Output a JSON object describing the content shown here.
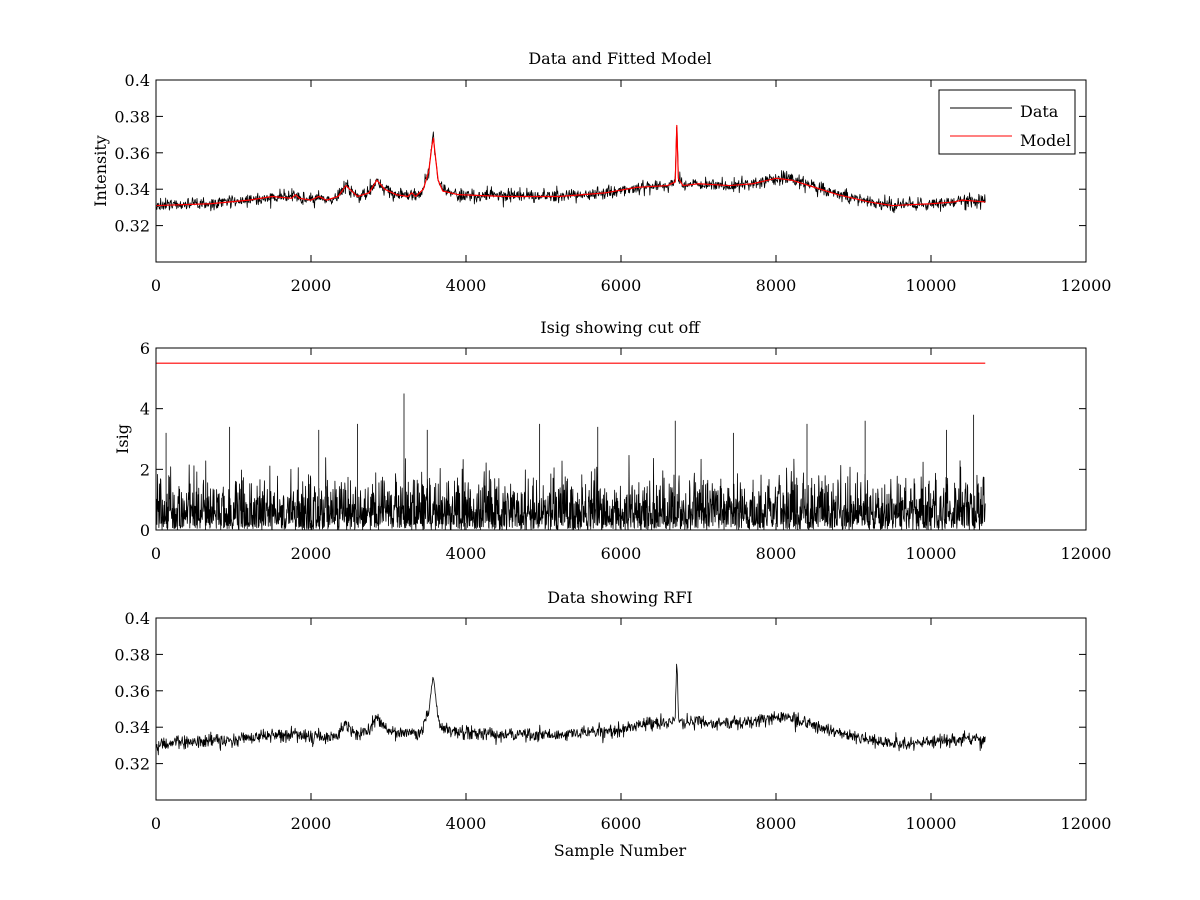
{
  "chart_data": [
    {
      "type": "line",
      "title": "Data and Fitted Model",
      "xlabel": "",
      "ylabel": "Intensity",
      "xlim": [
        0,
        12000
      ],
      "ylim": [
        0.3,
        0.4
      ],
      "xticks": [
        0,
        2000,
        4000,
        6000,
        8000,
        10000,
        12000
      ],
      "xtick_labels": [
        "0",
        "2000",
        "4000",
        "6000",
        "8000",
        "10000",
        "12000"
      ],
      "yticks": [
        0.32,
        0.34,
        0.36,
        0.38,
        0.4
      ],
      "ytick_labels": [
        "0.32",
        "0.34",
        "0.36",
        "0.38",
        "0.4"
      ],
      "legend": {
        "placement": "top-right"
      },
      "series": [
        {
          "name": "Data",
          "color": "#000000",
          "style": "noisy",
          "noise_amplitude": 0.004,
          "x": [
            0,
            700,
            1200,
            1500,
            1750,
            1800,
            1850,
            2000,
            2100,
            2200,
            2350,
            2450,
            2500,
            2600,
            2750,
            2850,
            2950,
            3100,
            3250,
            3300,
            3350,
            3450,
            3520,
            3560,
            3580,
            3600,
            3640,
            3700,
            3900,
            4500,
            5200,
            5800,
            6200,
            6600,
            6700,
            6720,
            6740,
            6800,
            7000,
            7400,
            7700,
            8000,
            8200,
            8500,
            8800,
            9200,
            9500,
            10000,
            10300,
            10400,
            10700
          ],
          "y": [
            0.331,
            0.332,
            0.334,
            0.336,
            0.335,
            0.337,
            0.335,
            0.334,
            0.336,
            0.334,
            0.336,
            0.342,
            0.34,
            0.336,
            0.338,
            0.345,
            0.34,
            0.337,
            0.336,
            0.338,
            0.336,
            0.34,
            0.35,
            0.364,
            0.368,
            0.36,
            0.345,
            0.339,
            0.337,
            0.336,
            0.336,
            0.338,
            0.341,
            0.342,
            0.344,
            0.378,
            0.346,
            0.342,
            0.343,
            0.342,
            0.343,
            0.346,
            0.345,
            0.341,
            0.337,
            0.333,
            0.331,
            0.332,
            0.333,
            0.334,
            0.333
          ]
        },
        {
          "name": "Model",
          "color": "#ff0000",
          "style": "smooth",
          "x": [
            0,
            700,
            1200,
            1500,
            1750,
            1800,
            1850,
            2000,
            2100,
            2200,
            2350,
            2450,
            2500,
            2600,
            2750,
            2850,
            2950,
            3100,
            3250,
            3300,
            3350,
            3450,
            3520,
            3560,
            3580,
            3600,
            3640,
            3700,
            3900,
            4500,
            5200,
            5800,
            6200,
            6600,
            6700,
            6720,
            6740,
            6800,
            7000,
            7400,
            7700,
            8000,
            8200,
            8500,
            8800,
            9200,
            9500,
            10000,
            10300,
            10400,
            10700
          ],
          "y": [
            0.331,
            0.332,
            0.334,
            0.336,
            0.335,
            0.337,
            0.335,
            0.334,
            0.336,
            0.334,
            0.336,
            0.342,
            0.34,
            0.336,
            0.338,
            0.345,
            0.34,
            0.337,
            0.336,
            0.338,
            0.336,
            0.34,
            0.35,
            0.364,
            0.368,
            0.36,
            0.345,
            0.339,
            0.337,
            0.336,
            0.336,
            0.338,
            0.341,
            0.342,
            0.344,
            0.375,
            0.346,
            0.342,
            0.343,
            0.342,
            0.343,
            0.346,
            0.345,
            0.341,
            0.337,
            0.333,
            0.331,
            0.332,
            0.333,
            0.334,
            0.333
          ]
        }
      ]
    },
    {
      "type": "line",
      "title": "Isig showing cut off",
      "xlabel": "",
      "ylabel": "Isig",
      "xlim": [
        0,
        12000
      ],
      "ylim": [
        0,
        6
      ],
      "xticks": [
        0,
        2000,
        4000,
        6000,
        8000,
        10000,
        12000
      ],
      "xtick_labels": [
        "0",
        "2000",
        "4000",
        "6000",
        "8000",
        "10000",
        "12000"
      ],
      "yticks": [
        0,
        2,
        4,
        6
      ],
      "ytick_labels": [
        "0",
        "2",
        "4",
        "6"
      ],
      "series": [
        {
          "color": "#000000",
          "style": "spiky",
          "x_range": [
            0,
            10700
          ],
          "typical_max": 2.5,
          "peaks": [
            {
              "x": 3200,
              "y": 4.5
            },
            {
              "x": 10550,
              "y": 3.8
            },
            {
              "x": 2600,
              "y": 3.5
            },
            {
              "x": 9150,
              "y": 3.6
            },
            {
              "x": 6700,
              "y": 3.6
            },
            {
              "x": 950,
              "y": 3.4
            },
            {
              "x": 4950,
              "y": 3.5
            },
            {
              "x": 8400,
              "y": 3.5
            },
            {
              "x": 130,
              "y": 3.2
            },
            {
              "x": 3500,
              "y": 3.3
            },
            {
              "x": 5700,
              "y": 3.4
            },
            {
              "x": 10200,
              "y": 3.3
            },
            {
              "x": 7450,
              "y": 3.2
            },
            {
              "x": 2100,
              "y": 3.3
            }
          ]
        },
        {
          "color": "#ff0000",
          "style": "flat",
          "x": [
            0,
            10700
          ],
          "y": [
            5.5,
            5.5
          ]
        }
      ]
    },
    {
      "type": "line",
      "title": "Data showing RFI",
      "xlabel": "Sample Number",
      "ylabel": "",
      "xlim": [
        0,
        12000
      ],
      "ylim": [
        0.3,
        0.4
      ],
      "xticks": [
        0,
        2000,
        4000,
        6000,
        8000,
        10000,
        12000
      ],
      "xtick_labels": [
        "0",
        "2000",
        "4000",
        "6000",
        "8000",
        "10000",
        "12000"
      ],
      "yticks": [
        0.32,
        0.34,
        0.36,
        0.38,
        0.4
      ],
      "ytick_labels": [
        "0.32",
        "0.34",
        "0.36",
        "0.38",
        "0.4"
      ],
      "series": [
        {
          "color": "#000000",
          "style": "noisy",
          "noise_amplitude": 0.004,
          "x": [
            0,
            700,
            1200,
            1500,
            1750,
            1800,
            1850,
            2000,
            2100,
            2200,
            2350,
            2450,
            2500,
            2600,
            2750,
            2850,
            2950,
            3100,
            3250,
            3300,
            3350,
            3450,
            3520,
            3560,
            3580,
            3600,
            3640,
            3700,
            3900,
            4500,
            5200,
            5800,
            6200,
            6600,
            6700,
            6720,
            6740,
            6800,
            7000,
            7400,
            7700,
            8000,
            8200,
            8500,
            8800,
            9200,
            9500,
            10000,
            10300,
            10400,
            10700
          ],
          "y": [
            0.331,
            0.332,
            0.334,
            0.336,
            0.335,
            0.337,
            0.335,
            0.334,
            0.336,
            0.334,
            0.336,
            0.342,
            0.34,
            0.336,
            0.338,
            0.345,
            0.34,
            0.337,
            0.336,
            0.338,
            0.336,
            0.34,
            0.35,
            0.364,
            0.368,
            0.36,
            0.345,
            0.339,
            0.337,
            0.336,
            0.336,
            0.338,
            0.341,
            0.342,
            0.344,
            0.378,
            0.346,
            0.342,
            0.343,
            0.342,
            0.343,
            0.346,
            0.345,
            0.341,
            0.337,
            0.333,
            0.331,
            0.332,
            0.333,
            0.334,
            0.333
          ]
        }
      ]
    }
  ]
}
